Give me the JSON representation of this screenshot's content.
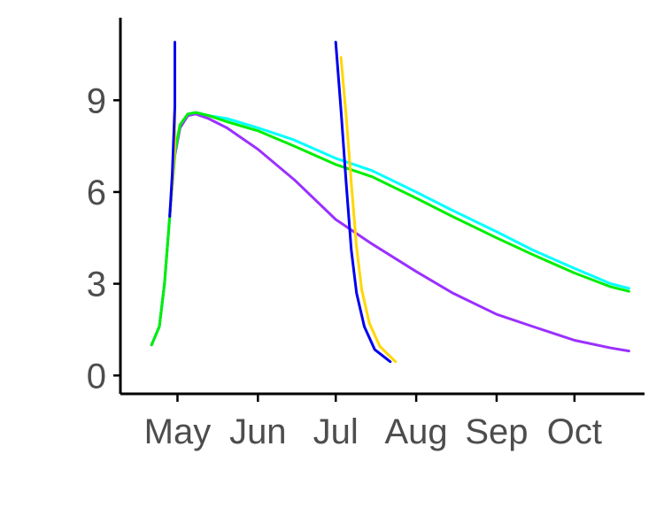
{
  "chart_data": {
    "type": "line",
    "title": "",
    "xlabel": "",
    "ylabel": "",
    "x_axis": {
      "kind": "date",
      "range": [
        "2023-04-09",
        "2023-10-28"
      ],
      "ticks": [
        {
          "date": "2023-05-01",
          "label": "May"
        },
        {
          "date": "2023-06-01",
          "label": "Jun"
        },
        {
          "date": "2023-07-01",
          "label": "Jul"
        },
        {
          "date": "2023-08-01",
          "label": "Aug"
        },
        {
          "date": "2023-09-01",
          "label": "Sep"
        },
        {
          "date": "2023-10-01",
          "label": "Oct"
        }
      ]
    },
    "y_axis": {
      "range": [
        -0.6,
        11.7
      ],
      "ticks": [
        {
          "value": 0,
          "label": "0"
        },
        {
          "value": 3,
          "label": "3"
        },
        {
          "value": 6,
          "label": "6"
        },
        {
          "value": 9,
          "label": "9"
        }
      ]
    },
    "grid": false,
    "legend": "none",
    "series": [
      {
        "color": "#9B30FF",
        "points": [
          [
            "2023-04-21",
            1.0
          ],
          [
            "2023-04-24",
            1.6
          ],
          [
            "2023-04-26",
            3.0
          ],
          [
            "2023-04-28",
            5.2
          ],
          [
            "2023-04-30",
            7.2
          ],
          [
            "2023-05-02",
            8.1
          ],
          [
            "2023-05-05",
            8.5
          ],
          [
            "2023-05-08",
            8.55
          ],
          [
            "2023-05-13",
            8.4
          ],
          [
            "2023-05-20",
            8.1
          ],
          [
            "2023-06-01",
            7.4
          ],
          [
            "2023-06-15",
            6.4
          ],
          [
            "2023-07-01",
            5.1
          ],
          [
            "2023-07-15",
            4.3
          ],
          [
            "2023-08-01",
            3.4
          ],
          [
            "2023-08-15",
            2.7
          ],
          [
            "2023-09-01",
            2.0
          ],
          [
            "2023-09-15",
            1.6
          ],
          [
            "2023-10-01",
            1.15
          ],
          [
            "2023-10-15",
            0.9
          ],
          [
            "2023-10-22",
            0.8
          ]
        ]
      },
      {
        "color": "#00FFFF",
        "points": [
          [
            "2023-04-21",
            1.0
          ],
          [
            "2023-04-24",
            1.6
          ],
          [
            "2023-04-26",
            3.0
          ],
          [
            "2023-04-28",
            5.2
          ],
          [
            "2023-04-30",
            7.3
          ],
          [
            "2023-05-02",
            8.2
          ],
          [
            "2023-05-05",
            8.55
          ],
          [
            "2023-05-08",
            8.6
          ],
          [
            "2023-05-13",
            8.5
          ],
          [
            "2023-05-20",
            8.4
          ],
          [
            "2023-06-01",
            8.1
          ],
          [
            "2023-06-15",
            7.7
          ],
          [
            "2023-07-01",
            7.1
          ],
          [
            "2023-07-15",
            6.7
          ],
          [
            "2023-08-01",
            6.0
          ],
          [
            "2023-08-15",
            5.4
          ],
          [
            "2023-09-01",
            4.7
          ],
          [
            "2023-09-15",
            4.1
          ],
          [
            "2023-10-01",
            3.5
          ],
          [
            "2023-10-15",
            3.0
          ],
          [
            "2023-10-22",
            2.85
          ]
        ]
      },
      {
        "color": "#00EE00",
        "points": [
          [
            "2023-04-21",
            1.0
          ],
          [
            "2023-04-24",
            1.6
          ],
          [
            "2023-04-26",
            3.0
          ],
          [
            "2023-04-28",
            5.2
          ],
          [
            "2023-04-30",
            7.3
          ],
          [
            "2023-05-02",
            8.2
          ],
          [
            "2023-05-05",
            8.55
          ],
          [
            "2023-05-08",
            8.6
          ],
          [
            "2023-05-13",
            8.5
          ],
          [
            "2023-05-20",
            8.3
          ],
          [
            "2023-06-01",
            8.0
          ],
          [
            "2023-06-15",
            7.5
          ],
          [
            "2023-07-01",
            6.9
          ],
          [
            "2023-07-15",
            6.5
          ],
          [
            "2023-08-01",
            5.8
          ],
          [
            "2023-08-15",
            5.2
          ],
          [
            "2023-09-01",
            4.5
          ],
          [
            "2023-09-15",
            3.95
          ],
          [
            "2023-10-01",
            3.35
          ],
          [
            "2023-10-15",
            2.9
          ],
          [
            "2023-10-22",
            2.75
          ]
        ]
      },
      {
        "color": "#FFD700",
        "points": [
          [
            "2023-04-28",
            5.2
          ],
          [
            "2023-04-29",
            6.3
          ],
          [
            "2023-04-30",
            7.6
          ],
          [
            "2023-04-30",
            9.8
          ],
          null,
          [
            "2023-07-03",
            10.4
          ],
          [
            "2023-07-05",
            8.5
          ],
          [
            "2023-07-07",
            6.3
          ],
          [
            "2023-07-09",
            4.2
          ],
          [
            "2023-07-11",
            2.8
          ],
          [
            "2023-07-14",
            1.7
          ],
          [
            "2023-07-18",
            0.95
          ],
          [
            "2023-07-24",
            0.45
          ]
        ]
      },
      {
        "color": "#0000EE",
        "points": [
          [
            "2023-04-28",
            5.2
          ],
          [
            "2023-04-29",
            6.6
          ],
          [
            "2023-04-30",
            8.8
          ],
          [
            "2023-04-30",
            10.9
          ],
          null,
          [
            "2023-07-01",
            10.9
          ],
          [
            "2023-07-03",
            8.7
          ],
          [
            "2023-07-05",
            6.3
          ],
          [
            "2023-07-07",
            4.1
          ],
          [
            "2023-07-09",
            2.7
          ],
          [
            "2023-07-12",
            1.6
          ],
          [
            "2023-07-16",
            0.85
          ],
          [
            "2023-07-22",
            0.45
          ]
        ]
      }
    ]
  }
}
